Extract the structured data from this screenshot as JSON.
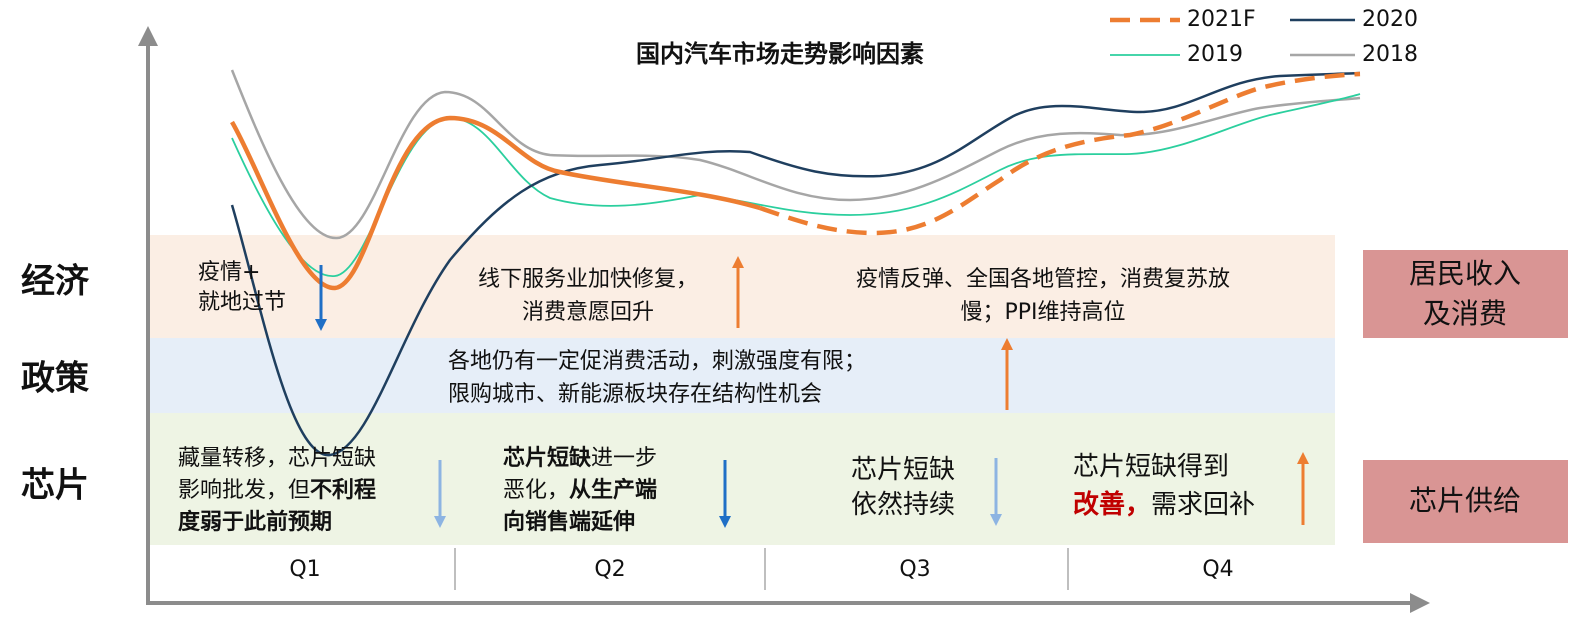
{
  "title": "国内汽车市场走势影响因素",
  "legend": [
    "2021F",
    "2020",
    "2019",
    "2018"
  ],
  "rows": [
    "经济",
    "政策",
    "芯片"
  ],
  "side_boxes": [
    [
      "居民收入",
      "及消费"
    ],
    [
      "芯片供给"
    ]
  ],
  "quarters": [
    "Q1",
    "Q2",
    "Q3",
    "Q4"
  ],
  "economy": [
    [
      "疫情+",
      "就地过节"
    ],
    [
      "线下服务业加快修复，",
      "消费意愿回升"
    ],
    [
      "疫情反弹、全国各地管控，消费复苏放",
      "慢；PPI维持高位"
    ]
  ],
  "policy": [
    "各地仍有一定促消费活动，刺激强度有限；",
    "限购城市、新能源板块存在结构性机会"
  ],
  "chip": [
    [
      [
        "藏量转移，芯片短缺"
      ],
      [
        "影响批发，但",
        "不利程"
      ],
      [
        "度弱于此前预期"
      ]
    ],
    [
      [
        "芯片短缺",
        "进一步"
      ],
      [
        "恶化，",
        "从生产端"
      ],
      [
        "向销售端延伸"
      ]
    ],
    [
      [
        "芯片短缺"
      ],
      [
        "依然持续"
      ]
    ],
    [
      [
        "芯片短缺得到"
      ],
      [
        "改善，",
        "需求回补"
      ]
    ]
  ]
}
